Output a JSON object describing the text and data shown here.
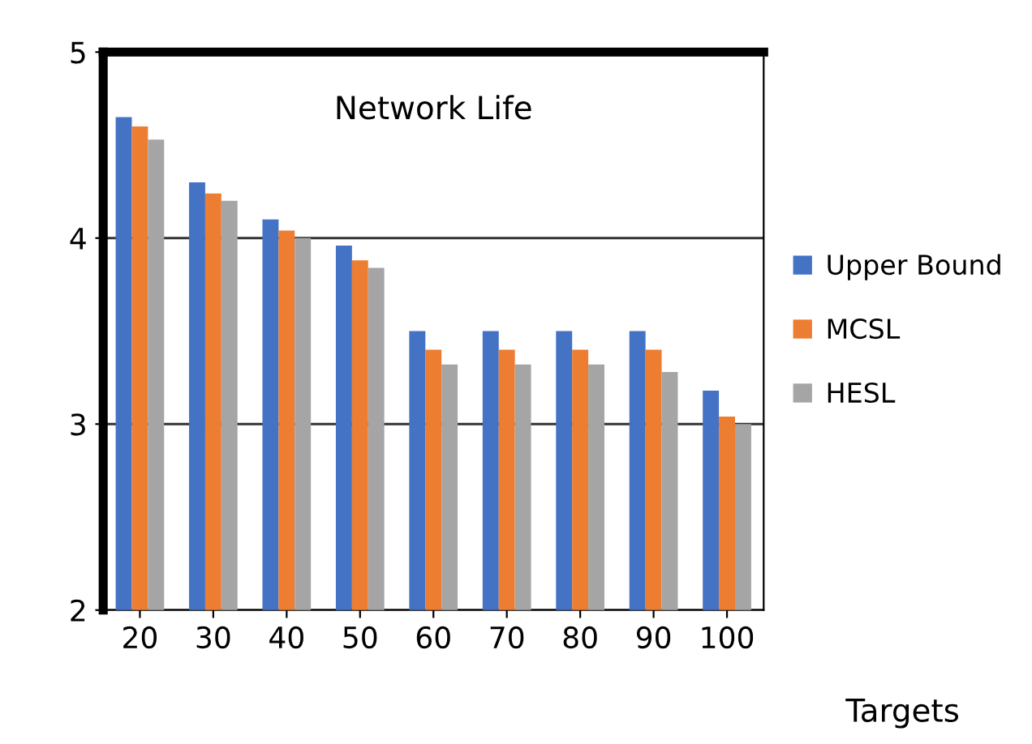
{
  "chart_data": {
    "type": "bar",
    "title": "Network Life",
    "xlabel": "Targets",
    "categories": [
      "20",
      "30",
      "40",
      "50",
      "60",
      "70",
      "80",
      "90",
      "100"
    ],
    "series": [
      {
        "name": "Upper Bound",
        "color": "#4472c4",
        "values": [
          4.65,
          4.3,
          4.1,
          3.96,
          3.5,
          3.5,
          3.5,
          3.5,
          3.18
        ]
      },
      {
        "name": "MCSL",
        "color": "#ed7d31",
        "values": [
          4.6,
          4.24,
          4.04,
          3.88,
          3.4,
          3.4,
          3.4,
          3.4,
          3.04
        ]
      },
      {
        "name": "HESL",
        "color": "#a5a5a5",
        "values": [
          4.53,
          4.2,
          4.0,
          3.84,
          3.32,
          3.32,
          3.32,
          3.28,
          3.0
        ]
      }
    ],
    "ylim": [
      2,
      5
    ],
    "yticks": [
      2,
      3,
      4,
      5
    ],
    "grid": "y",
    "legend": "right"
  }
}
